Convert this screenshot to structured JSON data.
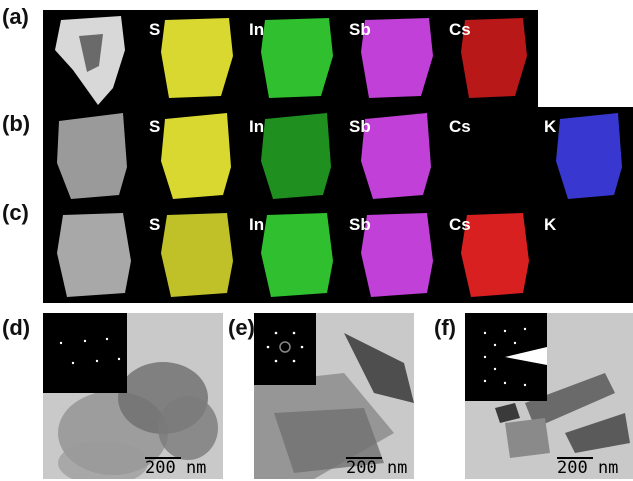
{
  "panel_labels": {
    "a": "(a)",
    "b": "(b)",
    "c": "(c)",
    "d": "(d)",
    "e": "(e)",
    "f": "(f)"
  },
  "element_maps": {
    "row_a": {
      "S": "S",
      "In": "In",
      "Sb": "Sb",
      "Cs": "Cs"
    },
    "row_b": {
      "S": "S",
      "In": "In",
      "Sb": "Sb",
      "Cs": "Cs",
      "K": "K"
    },
    "row_c": {
      "S": "S",
      "In": "In",
      "Sb": "Sb",
      "Cs": "Cs",
      "K": "K"
    }
  },
  "map_colors": {
    "S": "#d8d830",
    "In": "#2fbf2f",
    "Sb": "#c040d8",
    "Cs": "#d82020",
    "K": "#3838d0",
    "sem": "#9a9a9a"
  },
  "scale_bars": {
    "d": "200 nm",
    "e": "200 nm",
    "f": "200 nm"
  }
}
